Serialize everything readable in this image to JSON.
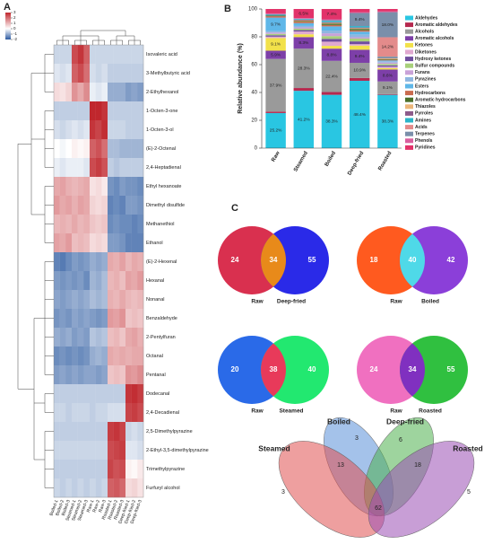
{
  "chart_data": [
    {
      "type": "heatmap",
      "panel": "A",
      "columns": [
        "Boiled-1",
        "Boiled-2",
        "Boiled-3",
        "Steamed-1",
        "Steamed-2",
        "Steamed-3",
        "Raw-1",
        "Raw-2",
        "Raw-3",
        "Roasted-1",
        "Roasted-2",
        "Roasted-3",
        "Deep-fried-1",
        "Deep-fried-2",
        "Deep-fried-3"
      ],
      "rows": [
        "Isovaleric acid",
        "3-Methylbutyric acid",
        "2-Ethylhexanol",
        "1-Octen-3-one",
        "1-Octen-3-ol",
        "(E)-2-Octenal",
        "2,4-Heptadienal",
        "Ethyl hexanoate",
        "Dimethyl disulfide",
        "Methanethiol",
        "Ethanol",
        "(E)-2-Hexenal",
        "Hexanal",
        "Nonanal",
        "Benzaldehyde",
        "2-Pentylfuran",
        "Octanal",
        "Pentanal",
        "Dodecanal",
        "2,4-Decadienal",
        "2,5-Dimethylpyrazine",
        "2-Ethyl-3,5-dimethylpyrazine",
        "Trimethylpyrazine",
        "Furfuryl alcohol"
      ],
      "values": [
        [
          -0.5,
          -0.5,
          -0.5,
          2.5,
          2.8,
          2.2,
          -0.5,
          -0.5,
          -0.5,
          -0.5,
          -0.5,
          -0.5,
          -0.5,
          -0.5,
          -0.5
        ],
        [
          -0.3,
          -0.4,
          -0.3,
          2.2,
          2.5,
          2,
          -0.4,
          -0.5,
          -0.4,
          -0.6,
          -0.6,
          -0.6,
          -0.6,
          -0.6,
          -0.6
        ],
        [
          0.5,
          0.4,
          0.6,
          1.5,
          1.2,
          1.6,
          -0.2,
          -0.3,
          -0.2,
          -1,
          -1,
          -1,
          -1.2,
          -1.1,
          -1.2
        ],
        [
          -0.6,
          -0.6,
          -0.6,
          -0.6,
          -0.6,
          -0.6,
          3,
          3.2,
          2.8,
          -0.6,
          -0.6,
          -0.6,
          -0.6,
          -0.6,
          -0.6
        ],
        [
          -0.4,
          -0.5,
          -0.4,
          -0.3,
          -0.4,
          -0.3,
          2.8,
          2.6,
          2.9,
          -0.5,
          -0.5,
          -0.5,
          -0.6,
          -0.6,
          -0.6
        ],
        [
          0,
          -0.1,
          0,
          0.2,
          0.1,
          0.2,
          2.2,
          2.4,
          2,
          -0.8,
          -0.8,
          -0.9,
          -0.9,
          -0.9,
          -0.9
        ],
        [
          -0.2,
          -0.3,
          -0.2,
          -0.2,
          -0.2,
          -0.3,
          2.5,
          2.7,
          2.4,
          -0.6,
          -0.7,
          -0.6,
          -0.6,
          -0.6,
          -0.6
        ],
        [
          1.2,
          1.3,
          1.1,
          1,
          1.1,
          1.2,
          0.4,
          0.5,
          0.3,
          -1.3,
          -1.4,
          -1.2,
          -1.3,
          -1.3,
          -1.4
        ],
        [
          1.4,
          1.2,
          1.3,
          1.1,
          1.3,
          1.2,
          0.6,
          0.5,
          0.6,
          -1.5,
          -1.4,
          -1.5,
          -1.2,
          -1.2,
          -1.3
        ],
        [
          1,
          1.1,
          1,
          1.2,
          1,
          1.1,
          0.8,
          0.7,
          0.8,
          -1.4,
          -1.3,
          -1.4,
          -1.4,
          -1.5,
          -1.4
        ],
        [
          1.3,
          1.2,
          1.4,
          0.9,
          1,
          0.9,
          0.5,
          0.6,
          0.5,
          -1.2,
          -1.2,
          -1.3,
          -1.5,
          -1.5,
          -1.5
        ],
        [
          -1.5,
          -1.6,
          -1.4,
          -1.2,
          -1.3,
          -1.2,
          -1,
          -1.1,
          -1,
          1.2,
          1.1,
          1.3,
          1,
          1.2,
          1.1
        ],
        [
          -1.2,
          -1.3,
          -1.2,
          -1.3,
          -1.2,
          -1.4,
          -0.9,
          -1,
          -0.8,
          1,
          1.1,
          0.9,
          1.3,
          1.2,
          1.4
        ],
        [
          -1.1,
          -1.2,
          -1.1,
          -1,
          -1.1,
          -1,
          -0.8,
          -0.9,
          -0.8,
          1.1,
          1,
          1.2,
          1,
          0.9,
          1
        ],
        [
          -1.3,
          -1.2,
          -1.3,
          -1.1,
          -1.2,
          -1.1,
          -1.2,
          -1.3,
          -1.2,
          1.4,
          1.3,
          1.5,
          0.8,
          0.9,
          0.8
        ],
        [
          -1,
          -1.1,
          -1,
          -1.2,
          -1.1,
          -1.2,
          -0.7,
          -0.8,
          -0.7,
          0.9,
          1,
          0.8,
          1.2,
          1.3,
          1.1
        ],
        [
          -1.4,
          -1.3,
          -1.4,
          -1.3,
          -1.4,
          -1.3,
          -1,
          -0.9,
          -1,
          1.2,
          1.1,
          1.2,
          1.1,
          1.2,
          1.2
        ],
        [
          -1.2,
          -1.1,
          -1.2,
          -1.1,
          -1.2,
          -1.1,
          -1.1,
          -1.2,
          -1.1,
          0.8,
          0.9,
          0.8,
          1.5,
          1.4,
          1.6
        ],
        [
          -0.6,
          -0.6,
          -0.6,
          -0.6,
          -0.6,
          -0.6,
          -0.6,
          -0.6,
          -0.6,
          -0.6,
          -0.6,
          -0.6,
          2.8,
          2.9,
          2.7
        ],
        [
          -0.5,
          -0.5,
          -0.6,
          -0.5,
          -0.5,
          -0.5,
          -0.6,
          -0.5,
          -0.5,
          -0.4,
          -0.4,
          -0.4,
          2.6,
          2.7,
          2.5
        ],
        [
          -0.6,
          -0.6,
          -0.6,
          -0.6,
          -0.6,
          -0.6,
          -0.6,
          -0.6,
          -0.6,
          2.7,
          2.8,
          2.6,
          -0.5,
          -0.4,
          -0.5
        ],
        [
          -0.5,
          -0.5,
          -0.5,
          -0.5,
          -0.5,
          -0.5,
          -0.5,
          -0.5,
          -0.5,
          2.5,
          2.6,
          2.7,
          -0.3,
          -0.3,
          -0.4
        ],
        [
          -0.6,
          -0.6,
          -0.6,
          -0.6,
          -0.6,
          -0.6,
          -0.6,
          -0.6,
          -0.6,
          2.6,
          2.4,
          2.5,
          0.2,
          0.1,
          0.3
        ],
        [
          -0.5,
          -0.6,
          -0.5,
          -0.6,
          -0.5,
          -0.6,
          -0.5,
          -0.6,
          -0.5,
          2.2,
          2.3,
          2.1,
          0.5,
          0.6,
          0.4
        ]
      ],
      "zlim": [
        -2,
        3
      ],
      "zticks": [
        3,
        2,
        1,
        0,
        -1,
        -2
      ],
      "low_color": "#2c5aa0",
      "mid_color": "#ffffff",
      "high_color": "#c0272d"
    },
    {
      "type": "bar",
      "stacked": true,
      "panel": "B",
      "ylabel": "Relative abundance (%)",
      "categories": [
        "Raw",
        "Steamed",
        "Boiled",
        "Deep-fried",
        "Roasted"
      ],
      "ylim": [
        0,
        100
      ],
      "yticks": [
        0,
        20,
        40,
        60,
        80,
        100
      ],
      "legend": "right",
      "series": [
        {
          "name": "Aldehydes",
          "color": "#29c6e2",
          "values": [
            25.2,
            41.2,
            38.3,
            48.4,
            38.3
          ],
          "value_labels": [
            "25.2%",
            "41.2%",
            "38.3%",
            "48.4%",
            "38.3%"
          ]
        },
        {
          "name": "Aromatic aldehydes",
          "color": "#b5294f",
          "values": [
            1,
            2,
            2,
            2,
            0.5
          ]
        },
        {
          "name": "Alcohols",
          "color": "#9a9a9a",
          "values": [
            37.9,
            28.3,
            22.4,
            10.9,
            9.1
          ],
          "value_labels": [
            "37.9%",
            "28.3%",
            "22.4%",
            "10.9%",
            "9.1%"
          ]
        },
        {
          "name": "Aromatic alcohols",
          "color": "#7d3fa8",
          "values": [
            5.9,
            8.3,
            8.8,
            9.4,
            8.6
          ],
          "value_labels": [
            "5.9%",
            "8.3%",
            "8.8%",
            "9.4%",
            "8.6%"
          ]
        },
        {
          "name": "Ketones",
          "color": "#f2e14a",
          "values": [
            9.1,
            2,
            2,
            3,
            1
          ],
          "value_labels": [
            "9.1%",
            null,
            null,
            null,
            null
          ]
        },
        {
          "name": "Diketones",
          "color": "#e0a9d0",
          "values": [
            1,
            2,
            3,
            1,
            1
          ]
        },
        {
          "name": "Hydroxy ketones",
          "color": "#6f4e9e",
          "values": [
            1,
            1,
            2,
            2,
            1
          ]
        },
        {
          "name": "Sulfur compounds",
          "color": "#a8d07a",
          "values": [
            1,
            1,
            2,
            2,
            1
          ]
        },
        {
          "name": "Furans",
          "color": "#c9a2d8",
          "values": [
            1,
            1,
            2,
            1,
            1
          ]
        },
        {
          "name": "Pyrazines",
          "color": "#8fb7e0",
          "values": [
            1,
            1,
            2,
            2,
            1
          ]
        },
        {
          "name": "Esters",
          "color": "#5fb7e8",
          "values": [
            9.7,
            2,
            3,
            2,
            0.5
          ],
          "value_labels": [
            "9.7%",
            null,
            null,
            null,
            null
          ]
        },
        {
          "name": "Hydrocarbons",
          "color": "#c96b4f",
          "values": [
            1,
            1,
            1,
            1,
            0.5
          ]
        },
        {
          "name": "Aromatic hydrocarbons",
          "color": "#4a6f2a",
          "values": [
            0.5,
            0.5,
            1,
            1,
            0.5
          ]
        },
        {
          "name": "Thiazoles",
          "color": "#ecb67a",
          "values": [
            0,
            0.5,
            0.5,
            0.5,
            0.5
          ]
        },
        {
          "name": "Pyrroles",
          "color": "#8c5a8a",
          "values": [
            0,
            0.5,
            0.5,
            0.5,
            0.5
          ]
        },
        {
          "name": "Amines",
          "color": "#2ab5c9",
          "values": [
            0.5,
            0.5,
            1,
            1,
            0.5
          ]
        },
        {
          "name": "Acids",
          "color": "#e38b8b",
          "values": [
            0,
            0,
            0,
            0,
            14.2
          ],
          "value_labels": [
            null,
            null,
            null,
            null,
            "14.2%"
          ]
        },
        {
          "name": "Terpenes",
          "color": "#7a8faa",
          "values": [
            0.5,
            0.2,
            0.5,
            9.4,
            18.0
          ],
          "value_labels": [
            null,
            null,
            null,
            "9.4%",
            "18.0%"
          ]
        },
        {
          "name": "Phenols",
          "color": "#d95f9f",
          "values": [
            0.5,
            0.5,
            0.6,
            0.5,
            0.5
          ]
        },
        {
          "name": "Pyridines",
          "color": "#e2336a",
          "values": [
            3.2,
            6.5,
            7.4,
            2.4,
            1.8
          ],
          "value_labels": [
            null,
            "6.5%",
            "7.4%",
            null,
            null
          ]
        }
      ]
    },
    {
      "type": "venn",
      "panel": "C",
      "sets": [
        "Raw",
        "Deep-fried"
      ],
      "values": [
        24,
        34,
        55
      ],
      "colors": [
        "#d9304f",
        "#2a2ae8"
      ],
      "overlap_color": "#e88a1a"
    },
    {
      "type": "venn",
      "sets": [
        "Raw",
        "Boiled"
      ],
      "values": [
        18,
        40,
        42
      ],
      "colors": [
        "#ff5a1f",
        "#8b3fd9"
      ],
      "overlap_color": "#4fd9e8"
    },
    {
      "type": "venn",
      "sets": [
        "Raw",
        "Steamed"
      ],
      "values": [
        20,
        38,
        40
      ],
      "colors": [
        "#2a6ae8",
        "#22e870"
      ],
      "overlap_color": "#e83a5a"
    },
    {
      "type": "venn",
      "sets": [
        "Raw",
        "Roasted"
      ],
      "values": [
        24,
        34,
        55
      ],
      "colors": [
        "#f070c0",
        "#30c040"
      ],
      "overlap_color": "#8030c0"
    },
    {
      "type": "venn",
      "sets": [
        "Boiled",
        "Deep-fried",
        "Steamed",
        "Roasted"
      ],
      "values": [
        3,
        6,
        13,
        18,
        62,
        3,
        5
      ],
      "colors": [
        "#5a8fd9",
        "#4fb04f",
        "#e05050",
        "#9a4fb5"
      ]
    }
  ]
}
